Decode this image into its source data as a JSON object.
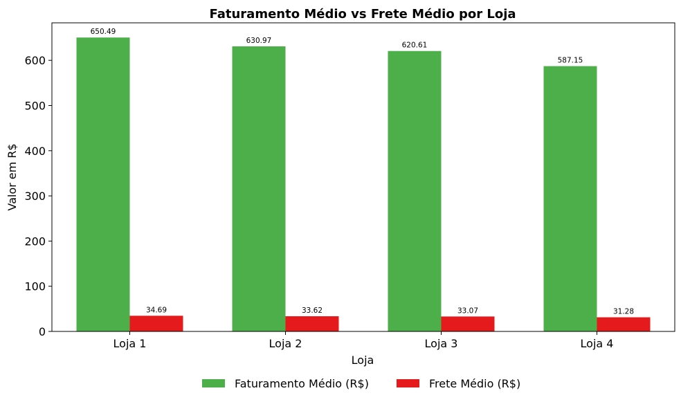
{
  "chart_data": {
    "type": "bar",
    "title": "Faturamento Médio vs Frete Médio por Loja",
    "xlabel": "Loja",
    "ylabel": "Valor em R$",
    "categories": [
      "Loja 1",
      "Loja 2",
      "Loja 3",
      "Loja 4"
    ],
    "series": [
      {
        "name": "Faturamento Médio (R$)",
        "values": [
          650.49,
          630.97,
          620.61,
          587.15
        ],
        "labels": [
          "650.49",
          "630.97",
          "620.61",
          "587.15"
        ],
        "color": "#4daf4a"
      },
      {
        "name": "Frete Médio (R$)",
        "values": [
          34.69,
          33.62,
          33.07,
          31.28
        ],
        "labels": [
          "34.69",
          "33.62",
          "33.07",
          "31.28"
        ],
        "color": "#e41a1c"
      }
    ],
    "ylim": [
      0,
      683
    ],
    "yticks": [
      0,
      100,
      200,
      300,
      400,
      500,
      600
    ],
    "ytick_labels": [
      "0",
      "100",
      "200",
      "300",
      "400",
      "500",
      "600"
    ],
    "grid": false,
    "legend_position": "bottom-center"
  }
}
